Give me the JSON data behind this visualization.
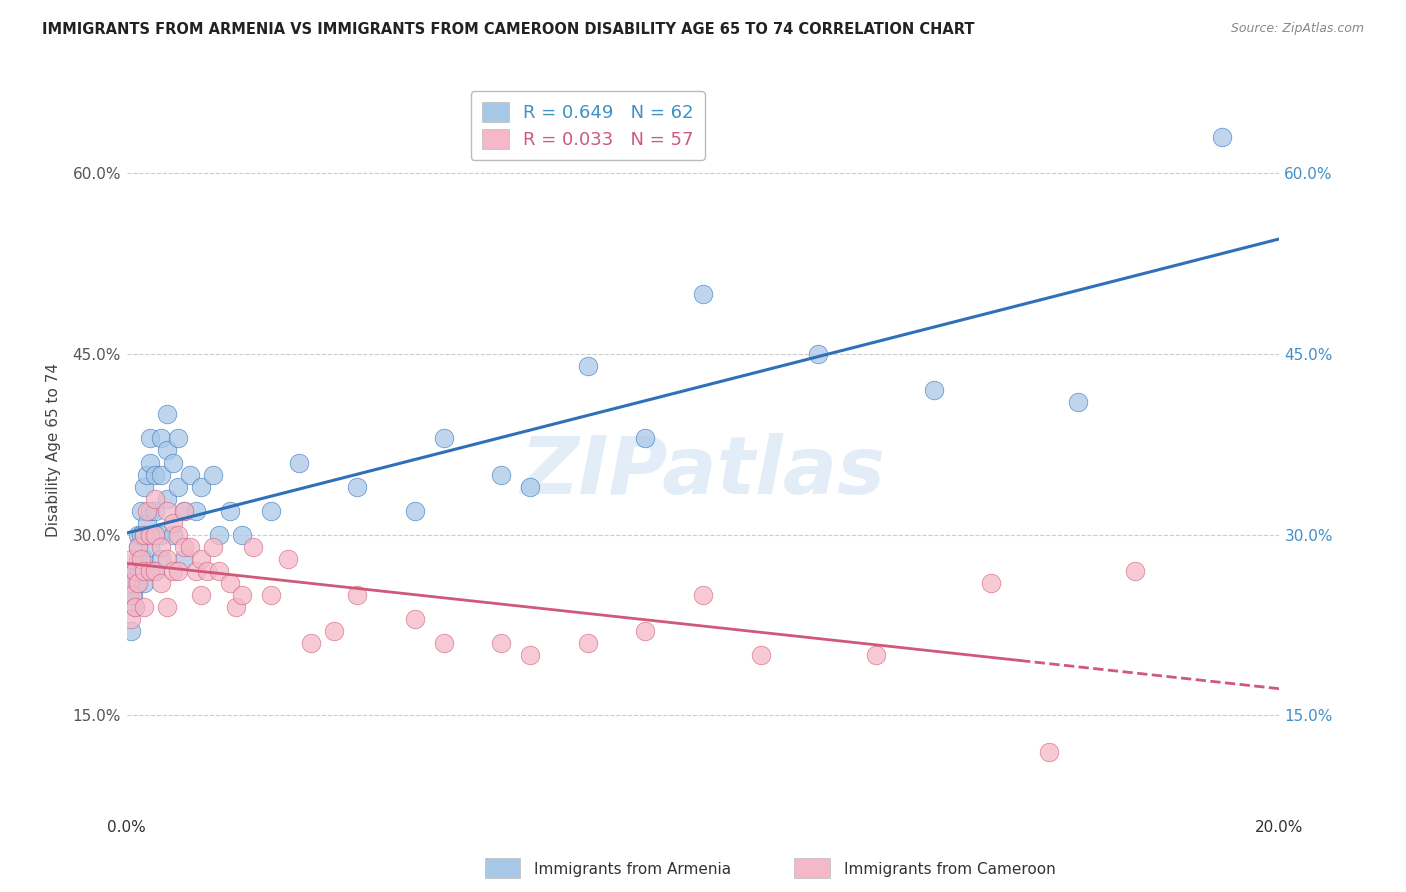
{
  "title": "IMMIGRANTS FROM ARMENIA VS IMMIGRANTS FROM CAMEROON DISABILITY AGE 65 TO 74 CORRELATION CHART",
  "source": "Source: ZipAtlas.com",
  "ylabel": "Disability Age 65 to 74",
  "legend_armenia": "Immigrants from Armenia",
  "legend_cameroon": "Immigrants from Cameroon",
  "r_armenia": 0.649,
  "n_armenia": 62,
  "r_cameroon": 0.033,
  "n_cameroon": 57,
  "color_armenia": "#a8c8e8",
  "color_cameroon": "#f4b8c8",
  "line_color_armenia": "#3070b8",
  "line_color_cameroon": "#d05878",
  "text_color_armenia": "#4090c8",
  "text_color_cameroon": "#d05878",
  "tick_color_right": "#4090c8",
  "tick_color_left": "#555555",
  "xlim": [
    0.0,
    0.2
  ],
  "ylim": [
    0.07,
    0.67
  ],
  "yticks": [
    0.15,
    0.3,
    0.45,
    0.6
  ],
  "xticks": [
    0.0,
    0.05,
    0.1,
    0.15,
    0.2
  ],
  "armenia_x": [
    0.0005,
    0.0008,
    0.001,
    0.001,
    0.0012,
    0.0015,
    0.0015,
    0.0018,
    0.002,
    0.002,
    0.002,
    0.0022,
    0.0025,
    0.0025,
    0.003,
    0.003,
    0.003,
    0.003,
    0.0035,
    0.0035,
    0.004,
    0.004,
    0.004,
    0.004,
    0.005,
    0.005,
    0.005,
    0.005,
    0.006,
    0.006,
    0.006,
    0.006,
    0.007,
    0.007,
    0.007,
    0.008,
    0.008,
    0.009,
    0.009,
    0.01,
    0.01,
    0.011,
    0.012,
    0.013,
    0.015,
    0.016,
    0.018,
    0.02,
    0.025,
    0.03,
    0.04,
    0.05,
    0.055,
    0.065,
    0.07,
    0.08,
    0.09,
    0.1,
    0.12,
    0.14,
    0.165,
    0.19
  ],
  "armenia_y": [
    0.25,
    0.22,
    0.27,
    0.26,
    0.25,
    0.24,
    0.27,
    0.26,
    0.28,
    0.3,
    0.29,
    0.27,
    0.32,
    0.3,
    0.34,
    0.3,
    0.28,
    0.26,
    0.35,
    0.31,
    0.38,
    0.36,
    0.32,
    0.29,
    0.35,
    0.32,
    0.3,
    0.27,
    0.38,
    0.35,
    0.3,
    0.28,
    0.4,
    0.37,
    0.33,
    0.36,
    0.3,
    0.38,
    0.34,
    0.32,
    0.28,
    0.35,
    0.32,
    0.34,
    0.35,
    0.3,
    0.32,
    0.3,
    0.32,
    0.36,
    0.34,
    0.32,
    0.38,
    0.35,
    0.34,
    0.44,
    0.38,
    0.5,
    0.45,
    0.42,
    0.41,
    0.63
  ],
  "cameroon_x": [
    0.0005,
    0.0008,
    0.001,
    0.001,
    0.0015,
    0.0015,
    0.002,
    0.002,
    0.0025,
    0.003,
    0.003,
    0.003,
    0.0035,
    0.004,
    0.004,
    0.005,
    0.005,
    0.005,
    0.006,
    0.006,
    0.007,
    0.007,
    0.007,
    0.008,
    0.008,
    0.009,
    0.009,
    0.01,
    0.01,
    0.011,
    0.012,
    0.013,
    0.013,
    0.014,
    0.015,
    0.016,
    0.018,
    0.019,
    0.02,
    0.022,
    0.025,
    0.028,
    0.032,
    0.036,
    0.04,
    0.05,
    0.055,
    0.065,
    0.07,
    0.08,
    0.09,
    0.1,
    0.11,
    0.13,
    0.15,
    0.16,
    0.175
  ],
  "cameroon_y": [
    0.26,
    0.23,
    0.28,
    0.25,
    0.27,
    0.24,
    0.29,
    0.26,
    0.28,
    0.3,
    0.27,
    0.24,
    0.32,
    0.3,
    0.27,
    0.33,
    0.3,
    0.27,
    0.29,
    0.26,
    0.32,
    0.28,
    0.24,
    0.31,
    0.27,
    0.3,
    0.27,
    0.32,
    0.29,
    0.29,
    0.27,
    0.25,
    0.28,
    0.27,
    0.29,
    0.27,
    0.26,
    0.24,
    0.25,
    0.29,
    0.25,
    0.28,
    0.21,
    0.22,
    0.25,
    0.23,
    0.21,
    0.21,
    0.2,
    0.21,
    0.22,
    0.25,
    0.2,
    0.2,
    0.26,
    0.12,
    0.27
  ],
  "background_color": "#ffffff",
  "grid_color": "#cccccc"
}
